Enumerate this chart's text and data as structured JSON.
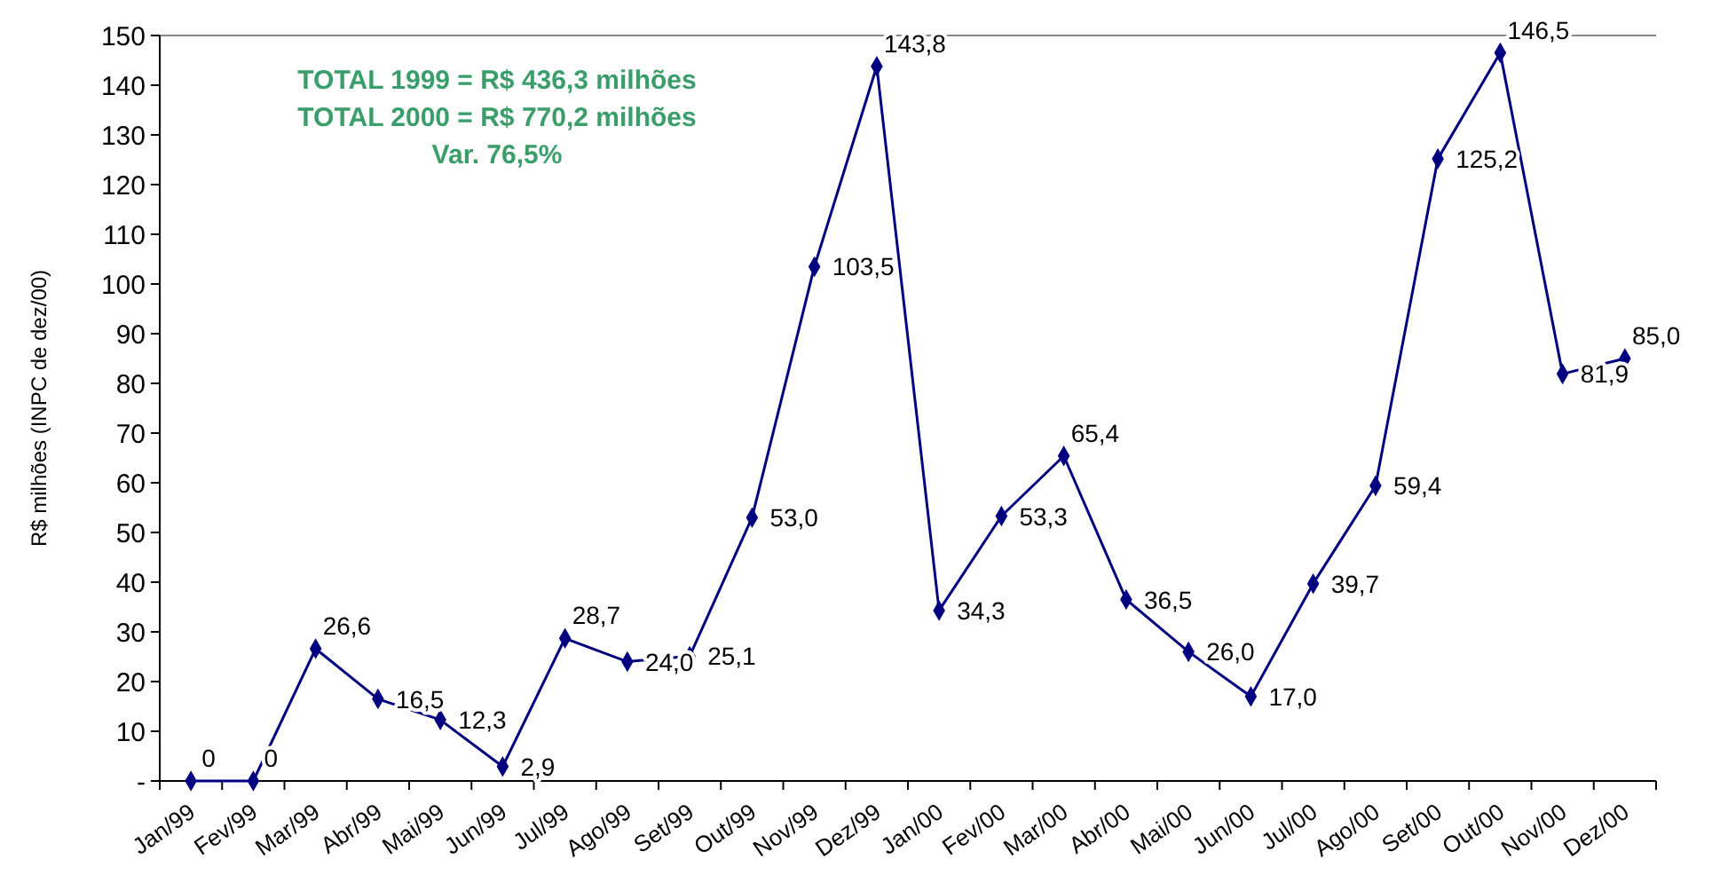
{
  "chart_data": {
    "type": "line",
    "ylabel": "R$ milhões (INPC de dez/00)",
    "categories": [
      "Jan/99",
      "Fev/99",
      "Mar/99",
      "Abr/99",
      "Mai/99",
      "Jun/99",
      "Jul/99",
      "Ago/99",
      "Set/99",
      "Out/99",
      "Nov/99",
      "Dez/99",
      "Jan/00",
      "Fev/00",
      "Mar/00",
      "Abr/00",
      "Mai/00",
      "Jun/00",
      "Jul/00",
      "Ago/00",
      "Set/00",
      "Out/00",
      "Nov/00",
      "Dez/00"
    ],
    "series": [
      {
        "color": "#000080",
        "values": [
          0,
          0,
          26.6,
          16.5,
          12.3,
          2.9,
          28.7,
          24.0,
          25.1,
          53.0,
          103.5,
          143.8,
          34.3,
          53.3,
          65.4,
          36.5,
          26.0,
          17.0,
          39.7,
          59.4,
          125.2,
          146.5,
          81.9,
          85.0
        ],
        "value_labels": [
          "0",
          "0",
          "26,6",
          "16,5",
          "12,3",
          "2,9",
          "28,7",
          "24,0",
          "25,1",
          "53,0",
          "103,5",
          "143,8",
          "34,3",
          "53,3",
          "65,4",
          "36,5",
          "26,0",
          "17,0",
          "39,7",
          "59,4",
          "125,2",
          "146,5",
          "81,9",
          "85,0"
        ]
      }
    ],
    "ylim": [
      0,
      150
    ],
    "yticks": [
      {
        "value": 0,
        "label": "-"
      },
      10,
      20,
      30,
      40,
      50,
      60,
      70,
      80,
      90,
      100,
      110,
      120,
      130,
      140,
      150
    ],
    "grid": false,
    "marker": "diamond",
    "line_style": "solid",
    "annotations": [
      "TOTAL 1999 = R$ 436,3 milhões",
      "TOTAL 2000 = R$ 770,2 milhões",
      "Var. 76,5%"
    ]
  }
}
